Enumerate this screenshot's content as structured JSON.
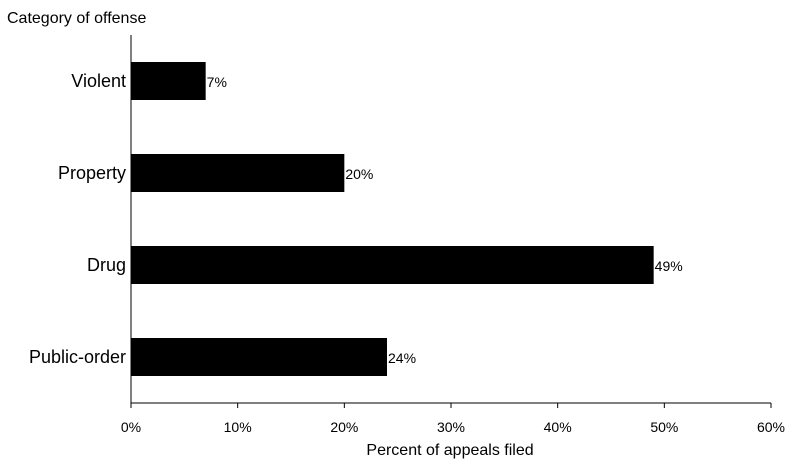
{
  "chart_data": {
    "type": "bar",
    "orientation": "horizontal",
    "title": "",
    "ylabel": "Category of offense",
    "xlabel": "Percent of appeals filed",
    "categories": [
      "Violent",
      "Property",
      "Drug",
      "Public-order"
    ],
    "values": [
      7,
      20,
      49,
      24
    ],
    "value_labels": [
      "7%",
      "20%",
      "49%",
      "24%"
    ],
    "xlim": [
      0,
      60
    ],
    "xticks": [
      0,
      10,
      20,
      30,
      40,
      50,
      60
    ],
    "xtick_labels": [
      "0%",
      "10%",
      "20%",
      "30%",
      "40%",
      "50%",
      "60%"
    ],
    "bar_color": "#000000",
    "grid": false,
    "legend": "none"
  }
}
